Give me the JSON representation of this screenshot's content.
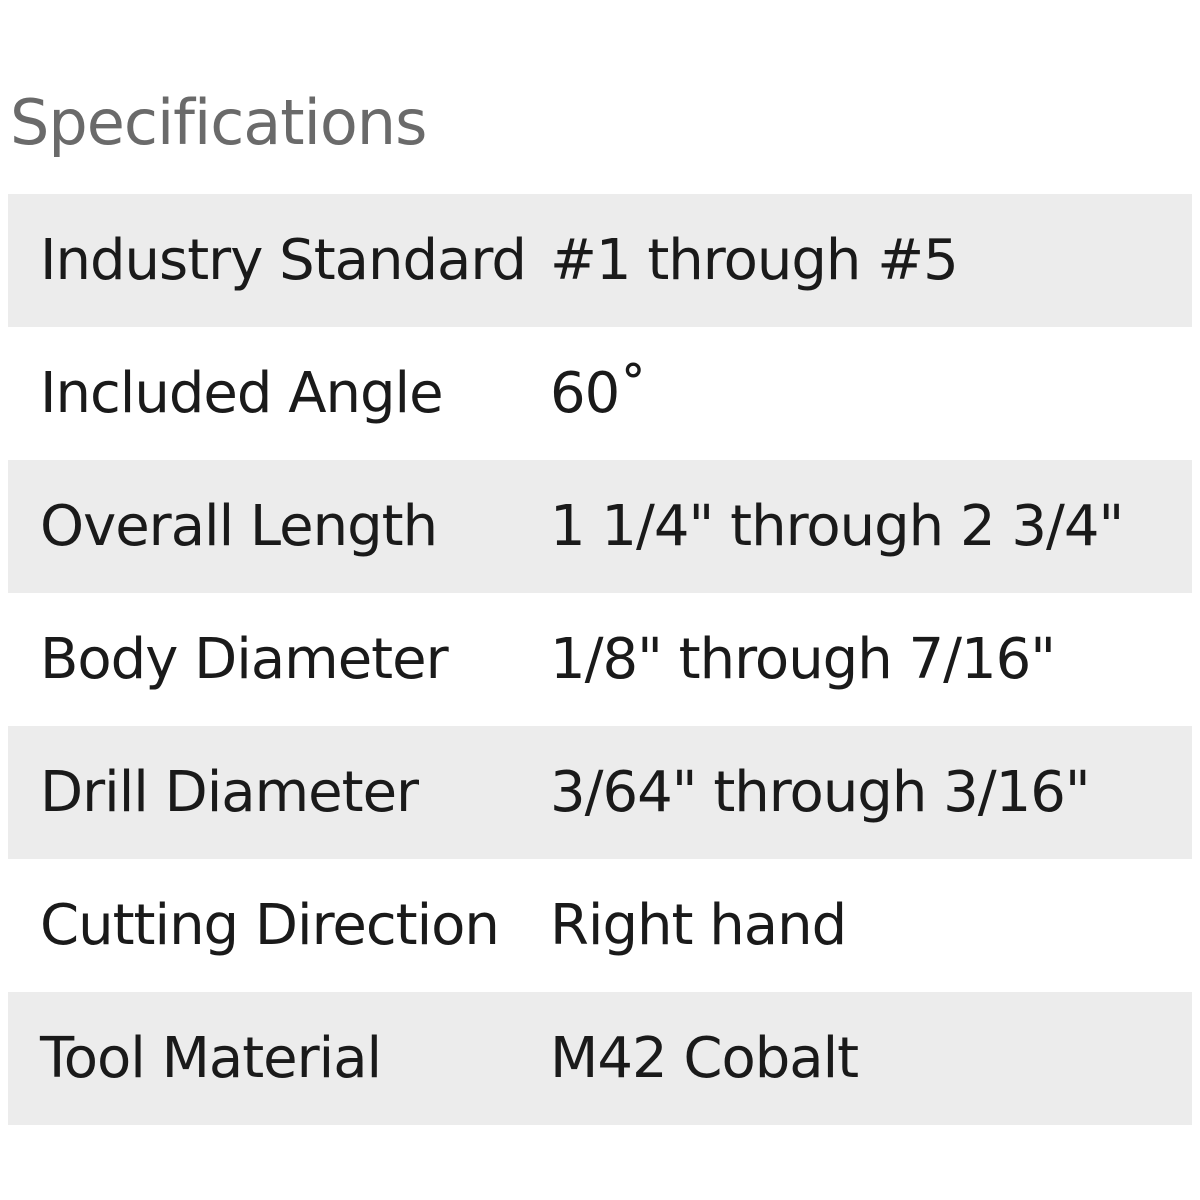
{
  "title": "Specifications",
  "rows": [
    {
      "label": "Industry Standard",
      "value": "#1 through #5"
    },
    {
      "label": "Included Angle",
      "value": "60˚"
    },
    {
      "label": "Overall Length",
      "value": "1 1/4\" through 2 3/4\""
    },
    {
      "label": "Body Diameter",
      "value": "1/8\" through 7/16\""
    },
    {
      "label": "Drill Diameter",
      "value": "3/64\" through 3/16\""
    },
    {
      "label": "Cutting Direction",
      "value": "Right hand"
    },
    {
      "label": "Tool Material",
      "value": "M42 Cobalt"
    }
  ]
}
